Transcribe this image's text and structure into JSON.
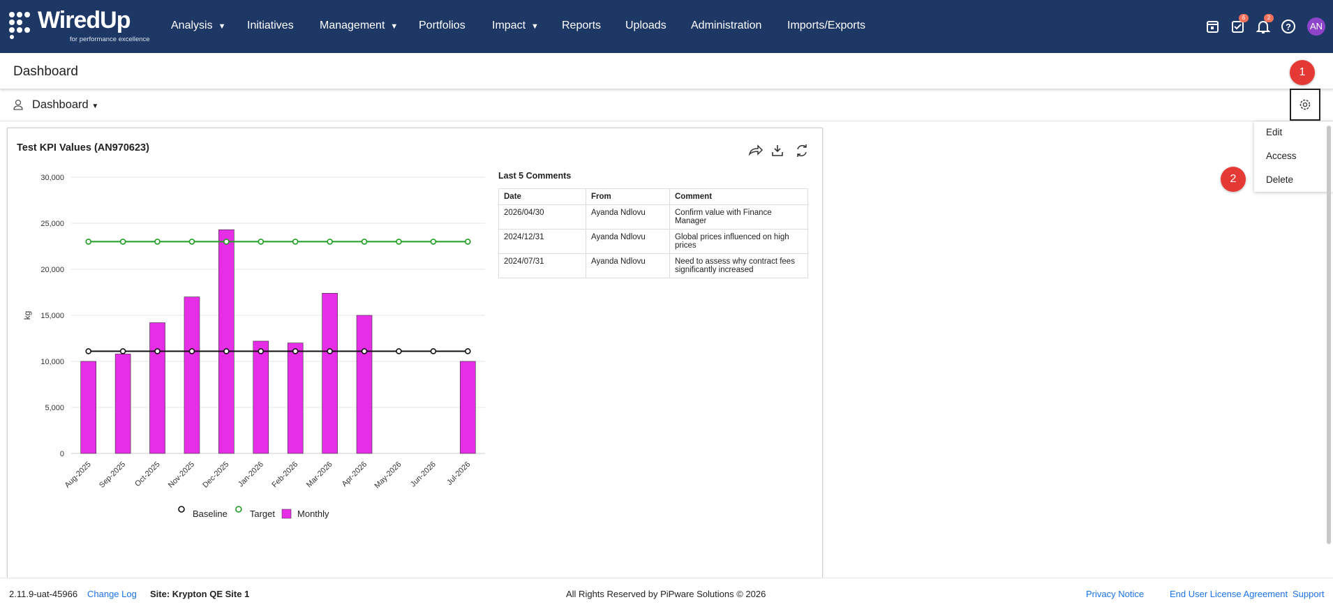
{
  "nav": {
    "logo": "WiredUp",
    "tagline": "for performance excellence",
    "items": [
      "Analysis",
      "Initiatives",
      "Management",
      "Portfolios",
      "Impact",
      "Reports",
      "Uploads",
      "Administration",
      "Imports/Exports"
    ],
    "task_badge": "6",
    "notification_badge": "2",
    "avatar": "AN"
  },
  "header": {
    "title": "Dashboard",
    "selector": "Dashboard"
  },
  "chart_data": {
    "type": "bar",
    "title": "Test KPI Values (AN970623)",
    "y_label": "kg",
    "categories": [
      "Aug-2025",
      "Sep-2025",
      "Oct-2025",
      "Nov-2025",
      "Dec-2025",
      "Jan-2026",
      "Feb-2026",
      "Mar-2026",
      "Apr-2026",
      "May-2026",
      "Jun-2026",
      "Jul-2026"
    ],
    "series": [
      {
        "name": "Baseline",
        "type": "line",
        "color": "#111111",
        "values": [
          11100,
          11100,
          11100,
          11100,
          11100,
          11100,
          11100,
          11100,
          11100,
          11100,
          11100,
          11100
        ]
      },
      {
        "name": "Target",
        "type": "line",
        "color": "#1e9e1e",
        "values": [
          23000,
          23000,
          23000,
          23000,
          23000,
          23000,
          23000,
          23000,
          23000,
          23000,
          23000,
          23000
        ]
      },
      {
        "name": "Monthly",
        "type": "bar",
        "color": "#e62ee6",
        "values": [
          10000,
          10800,
          14200,
          17000,
          24300,
          12200,
          12000,
          17400,
          15000,
          null,
          null,
          10000
        ]
      }
    ],
    "ylim": [
      0,
      30000
    ],
    "yticks": [
      0,
      {
        "value": 5000,
        "label": "5,000"
      },
      {
        "value": 10000,
        "label": "10,000"
      },
      {
        "value": 15000,
        "label": "15,000"
      },
      {
        "value": 20000,
        "label": "20,000"
      },
      {
        "value": 25000,
        "label": "25,000"
      },
      {
        "value": 30000,
        "label": "30,000"
      }
    ],
    "grid": true
  },
  "comments": {
    "title": "Last 5 Comments",
    "columns": [
      "Date",
      "From",
      "Comment"
    ],
    "rows": [
      [
        "2026/04/30",
        "Ayanda Ndlovu",
        "Confirm value with Finance Manager"
      ],
      [
        "2024/12/31",
        "Ayanda Ndlovu",
        "Global prices influenced on high prices"
      ],
      [
        "2024/07/31",
        "Ayanda Ndlovu",
        "Need to assess why contract fees significantly increased"
      ]
    ]
  },
  "menu": {
    "items": [
      "Edit",
      "Access",
      "Delete"
    ]
  },
  "callouts": [
    "1",
    "2"
  ],
  "footer": {
    "version": "2.11.9-uat-45966",
    "changelog": "Change Log",
    "site": "Site: Krypton QE Site 1",
    "copyright": "All Rights Reserved by PiPware Solutions © 2026",
    "privacy": "Privacy Notice",
    "eula": "End User License Agreement",
    "support": "Support"
  }
}
